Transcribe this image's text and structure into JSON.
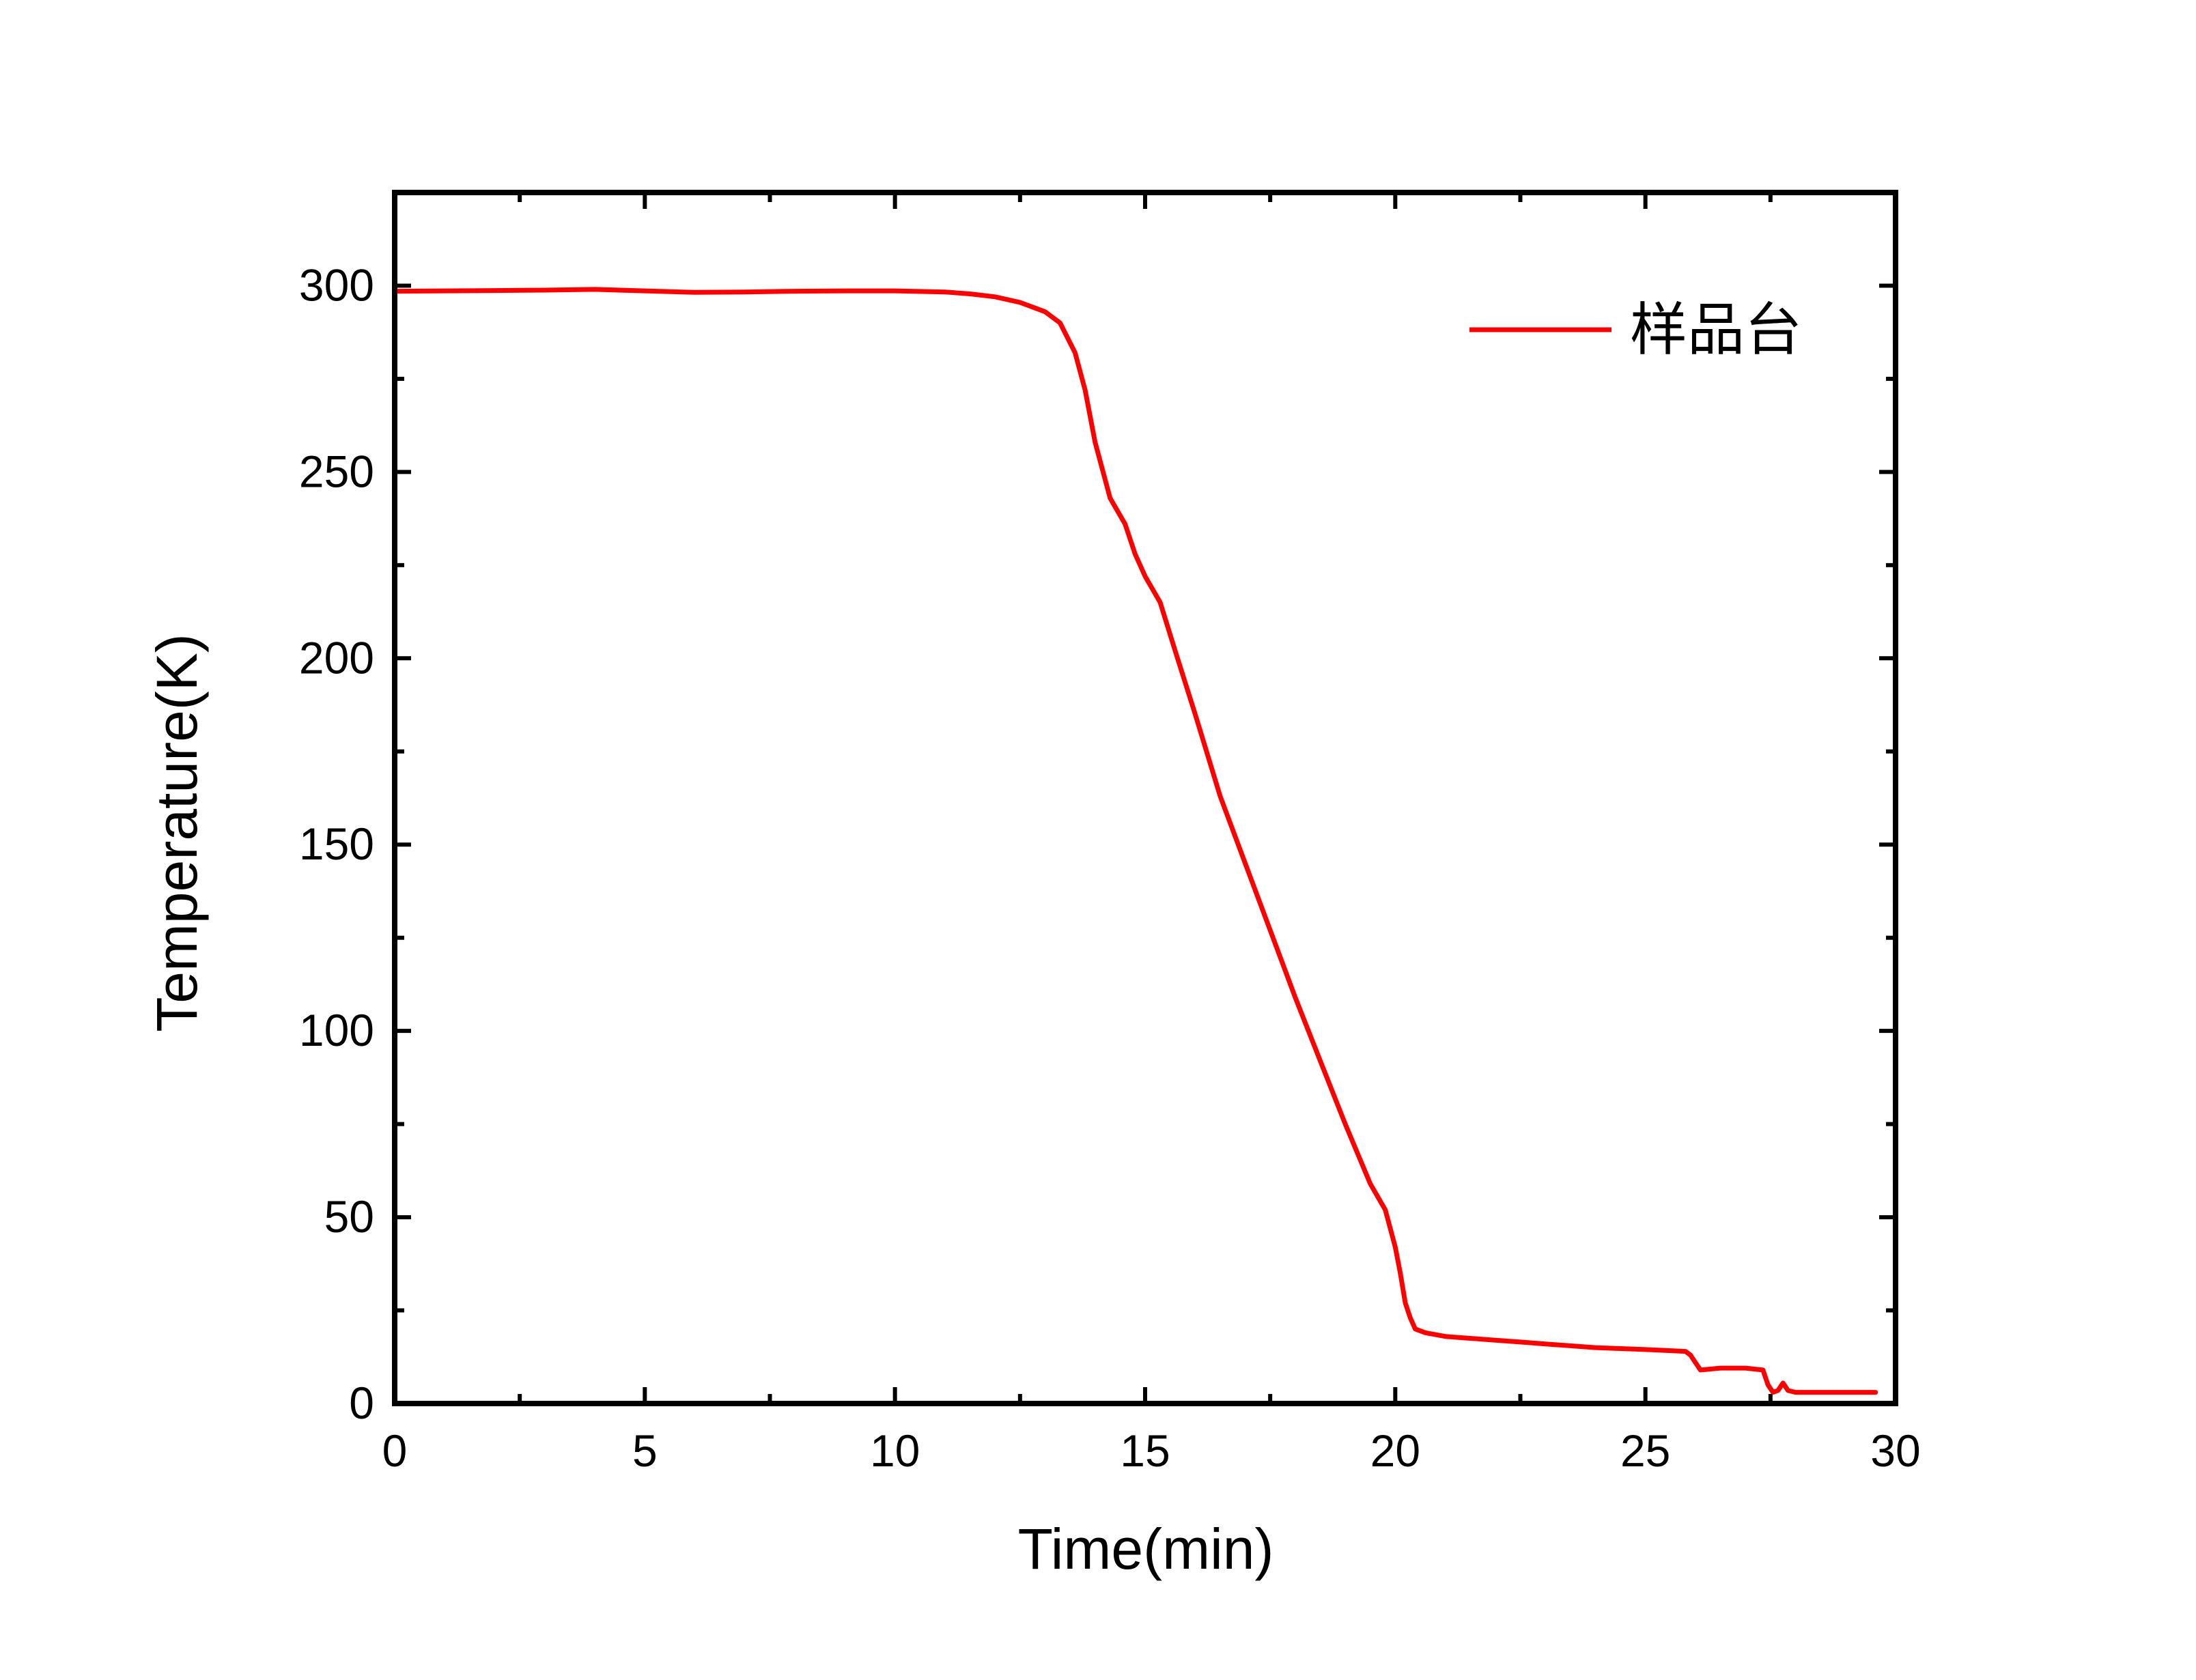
{
  "chart_data": {
    "type": "line",
    "title": "",
    "xlabel": "Time(min)",
    "ylabel": "Temperature(K)",
    "xlim": [
      0,
      30
    ],
    "ylim": [
      0,
      325
    ],
    "xticks": [
      0,
      5,
      10,
      15,
      20,
      25,
      30
    ],
    "yticks": [
      0,
      50,
      100,
      150,
      200,
      250,
      300
    ],
    "xtick_labels": [
      "0",
      "5",
      "10",
      "15",
      "20",
      "25",
      "30"
    ],
    "ytick_labels": [
      "0",
      "50",
      "100",
      "150",
      "200",
      "250",
      "300"
    ],
    "grid": false,
    "legend_position": "top-right",
    "series": [
      {
        "name": "样品台",
        "color": "#ff0000",
        "x": [
          0,
          1,
          2,
          3,
          4,
          5,
          6,
          7,
          8,
          9,
          10,
          11,
          11.5,
          12,
          12.5,
          13,
          13.3,
          13.6,
          13.8,
          14.0,
          14.3,
          14.6,
          14.8,
          15.0,
          15.3,
          15.6,
          16.0,
          16.5,
          17.0,
          17.5,
          18.0,
          18.5,
          19.0,
          19.5,
          19.8,
          20.0,
          20.1,
          20.2,
          20.3,
          20.4,
          20.6,
          21.0,
          21.5,
          22.0,
          22.5,
          23.0,
          24.0,
          25.0,
          25.8,
          25.9,
          26.0,
          26.1,
          26.5,
          27.0,
          27.35,
          27.45,
          27.55,
          27.65,
          27.75,
          27.85,
          28.0,
          29.0,
          29.6
        ],
        "values": [
          298.5,
          298.6,
          298.7,
          298.8,
          299,
          298.6,
          298.2,
          298.3,
          298.5,
          298.6,
          298.6,
          298.3,
          297.8,
          297,
          295.5,
          293,
          290,
          282,
          272,
          258,
          243,
          236,
          228,
          222,
          215,
          202,
          185,
          163,
          145,
          127,
          109,
          92,
          75,
          59,
          52,
          42,
          35,
          27,
          23,
          20,
          19,
          18,
          17.5,
          17,
          16.5,
          16,
          15,
          14.5,
          14,
          13,
          11,
          9,
          9.5,
          9.5,
          9,
          5,
          3,
          3.5,
          5.5,
          3.5,
          3,
          3,
          3
        ]
      }
    ]
  }
}
